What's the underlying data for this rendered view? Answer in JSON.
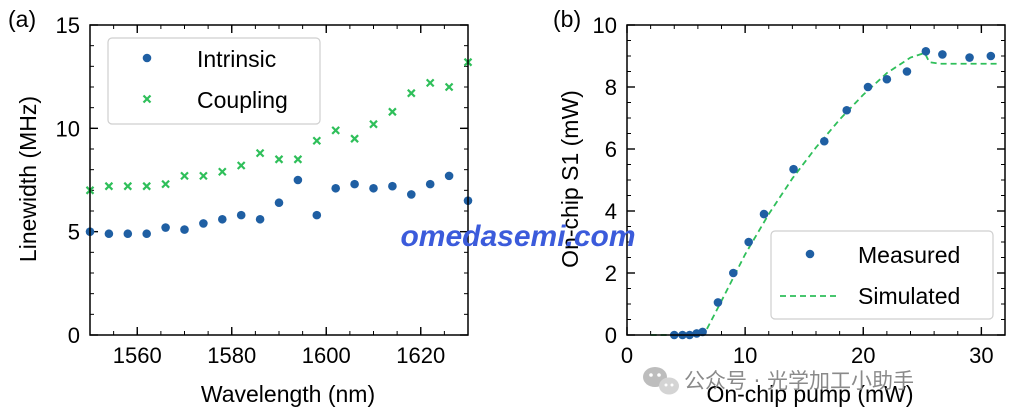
{
  "colors": {
    "intrinsic": "#1f5fa3",
    "coupling": "#2fbf5a",
    "measured": "#1f5fa3",
    "simulated": "#2fbf5a",
    "watermark": "#3b5bdb"
  },
  "watermark": "omedasemi.com",
  "credit": "公众号 · 光学加工小助手",
  "credit_icon": "wechat-icon",
  "chart_data": [
    {
      "panel": "(a)",
      "type": "scatter",
      "xlabel": "Wavelength (nm)",
      "ylabel": "Linewidth (MHz)",
      "xlim": [
        1550,
        1630
      ],
      "ylim": [
        0,
        15
      ],
      "xticks": [
        1560,
        1580,
        1600,
        1620
      ],
      "yticks": [
        0,
        5,
        10,
        15
      ],
      "legend_position": "top-left",
      "series": [
        {
          "name": "Intrinsic",
          "marker": "circle",
          "x": [
            1550,
            1554,
            1558,
            1562,
            1566,
            1570,
            1574,
            1578,
            1582,
            1586,
            1590,
            1594,
            1598,
            1602,
            1606,
            1610,
            1614,
            1618,
            1622,
            1626,
            1630
          ],
          "y": [
            5.0,
            4.9,
            4.9,
            4.9,
            5.2,
            5.1,
            5.4,
            5.6,
            5.8,
            5.6,
            6.4,
            7.5,
            5.8,
            7.1,
            7.3,
            7.1,
            7.2,
            6.8,
            7.3,
            7.7,
            6.5
          ]
        },
        {
          "name": "Coupling",
          "marker": "x",
          "x": [
            1550,
            1554,
            1558,
            1562,
            1566,
            1570,
            1574,
            1578,
            1582,
            1586,
            1590,
            1594,
            1598,
            1602,
            1606,
            1610,
            1614,
            1618,
            1622,
            1626,
            1630
          ],
          "y": [
            7.0,
            7.2,
            7.2,
            7.2,
            7.3,
            7.7,
            7.7,
            7.9,
            8.2,
            8.8,
            8.5,
            8.5,
            9.4,
            9.9,
            9.5,
            10.2,
            10.8,
            11.7,
            12.2,
            12.0,
            13.2
          ]
        }
      ]
    },
    {
      "panel": "(b)",
      "type": "scatter",
      "xlabel": "On-chip pump (mW)",
      "ylabel": "On-chip S1 (mW)",
      "xlim": [
        0,
        32
      ],
      "ylim": [
        0,
        10
      ],
      "xticks": [
        0,
        10,
        20,
        30
      ],
      "yticks": [
        0,
        2,
        4,
        6,
        8,
        10
      ],
      "legend_position": "bottom-right",
      "series": [
        {
          "name": "Measured",
          "marker": "circle",
          "x": [
            4.0,
            4.7,
            5.3,
            5.9,
            6.4,
            7.7,
            9.0,
            10.3,
            11.6,
            14.1,
            16.7,
            18.6,
            20.4,
            22.0,
            23.7,
            25.3,
            26.7,
            29.0,
            30.8
          ],
          "y": [
            0.0,
            0.0,
            0.0,
            0.05,
            0.1,
            1.05,
            2.0,
            3.0,
            3.9,
            5.35,
            6.25,
            7.25,
            8.0,
            8.25,
            8.5,
            9.15,
            9.05,
            8.95,
            9.0
          ]
        },
        {
          "name": "Simulated",
          "style": "dashed",
          "x": [
            2,
            6.5,
            8,
            10,
            12,
            14,
            16,
            18,
            20,
            22,
            24,
            25.2,
            25.6,
            26.5,
            31.5
          ],
          "y": [
            0,
            0,
            1.1,
            2.6,
            3.9,
            5.05,
            6.05,
            6.95,
            7.75,
            8.45,
            8.95,
            9.1,
            8.8,
            8.75,
            8.75
          ]
        }
      ]
    }
  ]
}
